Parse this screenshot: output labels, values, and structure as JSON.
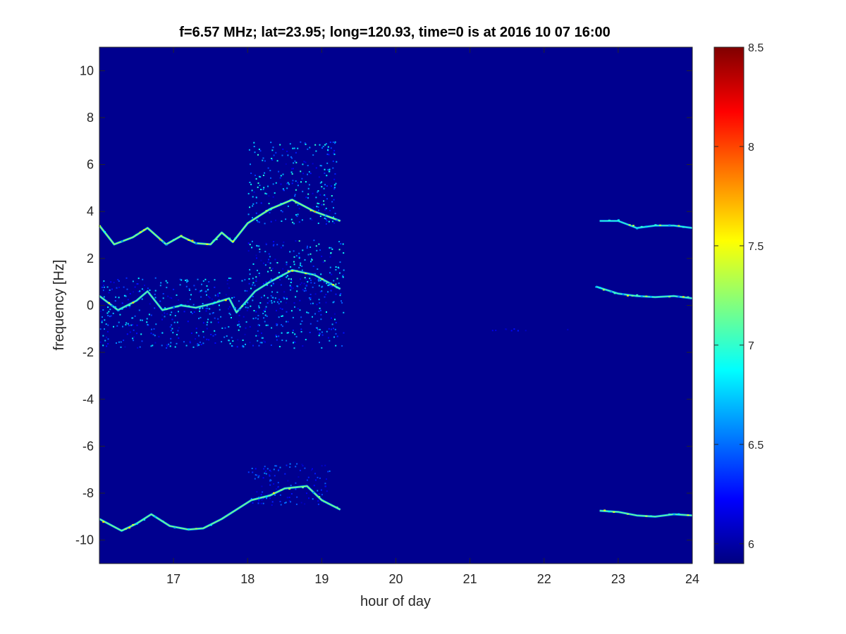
{
  "chart_data": {
    "type": "heatmap",
    "title": "f=6.57 MHz;  lat=23.95; long=120.93, time=0 is at 2016 10 07 16:00",
    "xlabel": "hour of day",
    "ylabel": "frequency [Hz]",
    "xlim": [
      16,
      24
    ],
    "ylim": [
      -11,
      11
    ],
    "x_ticks": [
      17,
      18,
      19,
      20,
      21,
      22,
      23,
      24
    ],
    "y_ticks": [
      -10,
      -8,
      -6,
      -4,
      -2,
      0,
      2,
      4,
      6,
      8,
      10
    ],
    "colorbar": {
      "colormap": "jet",
      "clim": [
        5.9,
        8.5
      ],
      "ticks": [
        6,
        6.5,
        7,
        7.5,
        8,
        8.5
      ],
      "tick_labels": [
        "6",
        "6.5",
        "7",
        "7.5",
        "8",
        "8.5"
      ]
    },
    "background_value": 5.9,
    "grid": false,
    "traces": [
      {
        "band": "upper trace (about +3 Hz)",
        "points": [
          [
            16.0,
            3.4
          ],
          [
            16.2,
            2.6
          ],
          [
            16.45,
            2.9
          ],
          [
            16.65,
            3.3
          ],
          [
            16.9,
            2.6
          ],
          [
            17.1,
            2.95
          ],
          [
            17.3,
            2.65
          ],
          [
            17.5,
            2.6
          ],
          [
            17.65,
            3.1
          ],
          [
            17.8,
            2.7
          ],
          [
            18.0,
            3.5
          ],
          [
            18.3,
            4.1
          ],
          [
            18.6,
            4.5
          ],
          [
            18.9,
            4.0
          ],
          [
            19.25,
            3.6
          ]
        ],
        "peak_value": 7.8
      },
      {
        "band": "middle trace (about 0 Hz)",
        "points": [
          [
            16.0,
            0.4
          ],
          [
            16.25,
            -0.2
          ],
          [
            16.5,
            0.2
          ],
          [
            16.65,
            0.6
          ],
          [
            16.85,
            -0.2
          ],
          [
            17.1,
            0.0
          ],
          [
            17.3,
            -0.1
          ],
          [
            17.55,
            0.1
          ],
          [
            17.75,
            0.3
          ],
          [
            17.85,
            -0.3
          ],
          [
            18.1,
            0.6
          ],
          [
            18.3,
            1.0
          ],
          [
            18.6,
            1.5
          ],
          [
            18.9,
            1.3
          ],
          [
            19.25,
            0.7
          ]
        ],
        "peak_value": 7.6
      },
      {
        "band": "lower trace (about -9 Hz)",
        "points": [
          [
            16.0,
            -9.1
          ],
          [
            16.3,
            -9.6
          ],
          [
            16.5,
            -9.3
          ],
          [
            16.7,
            -8.9
          ],
          [
            16.95,
            -9.4
          ],
          [
            17.2,
            -9.55
          ],
          [
            17.4,
            -9.5
          ],
          [
            17.65,
            -9.1
          ],
          [
            18.05,
            -8.3
          ],
          [
            18.3,
            -8.1
          ],
          [
            18.5,
            -7.8
          ],
          [
            18.8,
            -7.7
          ],
          [
            19.0,
            -8.3
          ],
          [
            19.25,
            -8.7
          ]
        ],
        "peak_value": 7.7
      },
      {
        "band": "late upper trace",
        "points": [
          [
            22.75,
            3.6
          ],
          [
            23.0,
            3.6
          ],
          [
            23.25,
            3.3
          ],
          [
            23.5,
            3.4
          ],
          [
            23.75,
            3.4
          ],
          [
            24.0,
            3.3
          ]
        ],
        "peak_value": 7.4
      },
      {
        "band": "late middle trace",
        "points": [
          [
            22.7,
            0.8
          ],
          [
            23.0,
            0.5
          ],
          [
            23.25,
            0.4
          ],
          [
            23.5,
            0.35
          ],
          [
            23.75,
            0.4
          ],
          [
            24.0,
            0.3
          ]
        ],
        "peak_value": 7.5
      },
      {
        "band": "late lower trace",
        "points": [
          [
            22.75,
            -8.75
          ],
          [
            23.0,
            -8.8
          ],
          [
            23.25,
            -8.95
          ],
          [
            23.5,
            -9.0
          ],
          [
            23.75,
            -8.9
          ],
          [
            24.0,
            -8.95
          ]
        ],
        "peak_value": 7.6
      }
    ],
    "diffuse_regions": [
      {
        "x": [
          16.0,
          19.3
        ],
        "y": [
          -1.8,
          1.2
        ],
        "peak_value": 6.9
      },
      {
        "x": [
          18.0,
          19.3
        ],
        "y": [
          0.8,
          2.8
        ],
        "peak_value": 7.1
      },
      {
        "x": [
          18.0,
          19.2
        ],
        "y": [
          3.5,
          7.0
        ],
        "peak_value": 7.0
      },
      {
        "x": [
          18.0,
          19.1
        ],
        "y": [
          -8.5,
          -6.7
        ],
        "peak_value": 6.6
      },
      {
        "x": [
          20.8,
          22.4
        ],
        "y": [
          -1.05,
          -0.95
        ],
        "peak_value": 6.3
      }
    ]
  }
}
